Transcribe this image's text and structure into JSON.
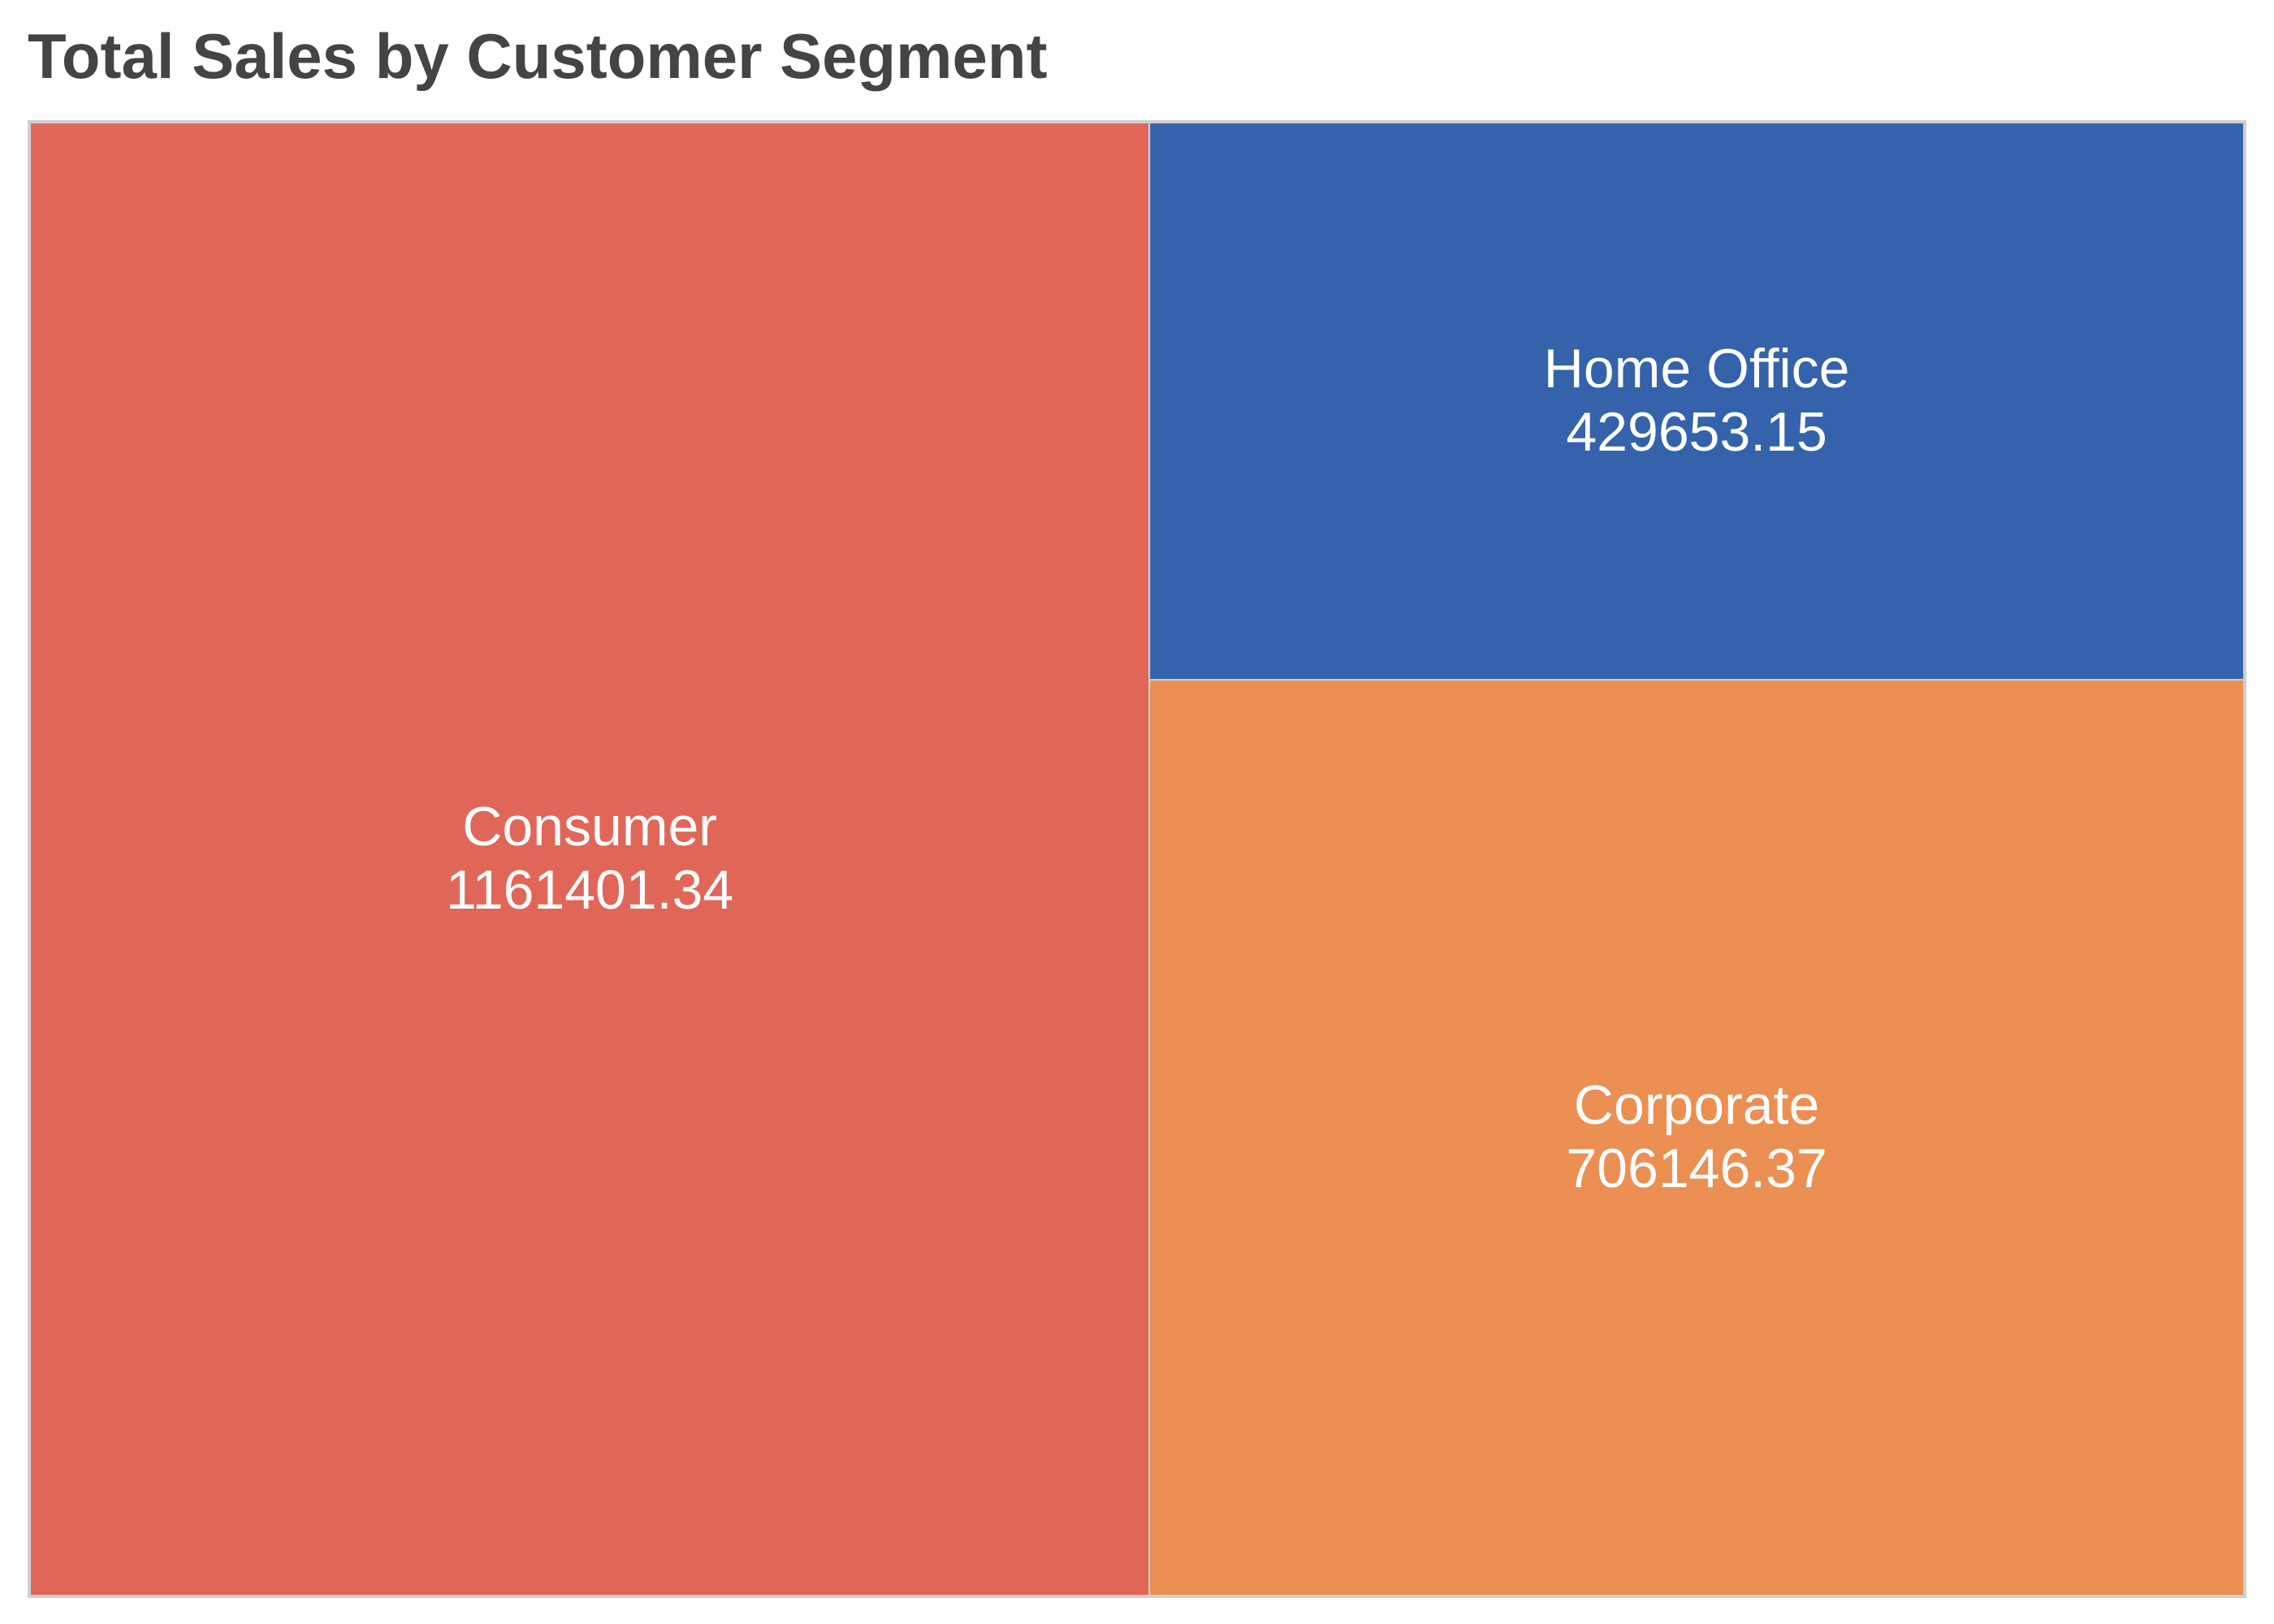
{
  "chart_data": {
    "type": "treemap",
    "title": "Total Sales by Customer Segment",
    "segments": [
      {
        "name": "Consumer",
        "value": 1161401.34,
        "label_value": "1161401.34",
        "color": "#E06758"
      },
      {
        "name": "Home Office",
        "value": 429653.15,
        "label_value": "429653.15",
        "color": "#3463AB"
      },
      {
        "name": "Corporate",
        "value": 706146.37,
        "label_value": "706146.37",
        "color": "#EB8F52"
      }
    ],
    "tile_border_color": "#cfcfcf",
    "label_color": "#ffffff"
  }
}
